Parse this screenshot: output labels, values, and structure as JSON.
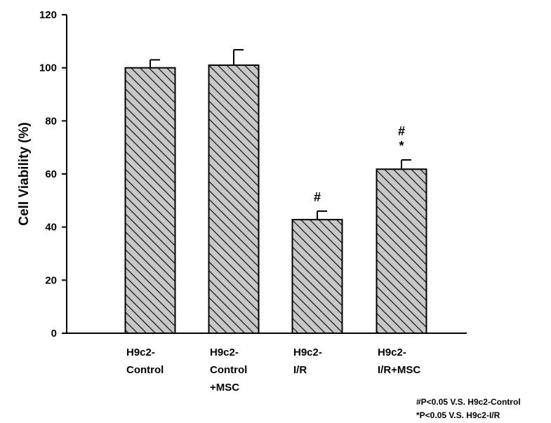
{
  "chart_data": {
    "type": "bar",
    "title": "",
    "xlabel": "",
    "ylabel": "Cell  Viability (%)",
    "ylim": [
      0,
      120
    ],
    "yticks": [
      0,
      20,
      40,
      60,
      80,
      100,
      120
    ],
    "grid": false,
    "legend": "none",
    "bar_fill": "hatched diagonal, gray",
    "colors": {
      "bar_fill": "#c8c8c8",
      "hatch": "#1a1a1a",
      "axis": "#000000"
    },
    "categories": [
      [
        "H9c2-",
        "Control"
      ],
      [
        "H9c2-",
        "Control",
        "+MSC"
      ],
      [
        "H9c2-",
        "I/R"
      ],
      [
        "H9c2-",
        "I/R+MSC"
      ]
    ],
    "values": [
      100,
      101,
      42.8,
      61.8
    ],
    "errors": [
      3,
      5.8,
      3.2,
      3.5
    ],
    "annotations": [
      [],
      [],
      [
        "#"
      ],
      [
        "#",
        "*"
      ]
    ]
  },
  "footnotes": [
    "#P<0.05 V.S. H9c2-Control",
    "*P<0.05 V.S. H9c2-I/R"
  ]
}
